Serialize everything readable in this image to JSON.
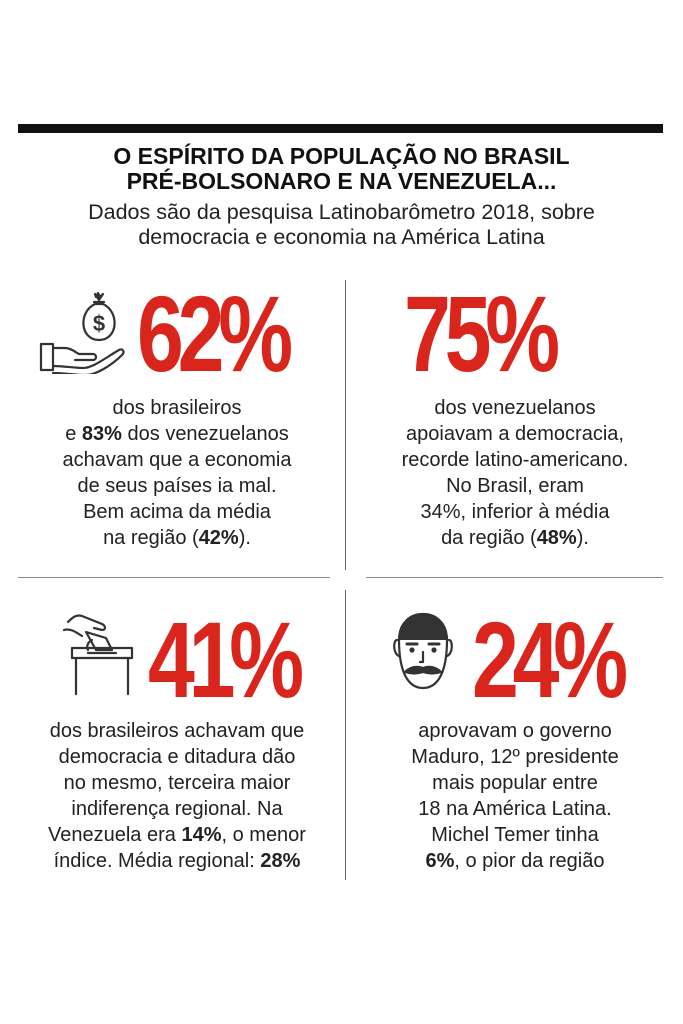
{
  "header": {
    "title_line1": "O ESPÍRITO DA POPULAÇÃO NO BRASIL",
    "title_line2": "PRÉ-BOLSONARO E NA VENEZUELA...",
    "subtitle_line1": "Dados são da pesquisa Latinobarômetro 2018, sobre",
    "subtitle_line2": "democracia e economia na América Latina"
  },
  "colors": {
    "accent": "#d9251c",
    "text": "#222222",
    "rule": "#111111"
  },
  "blocks": [
    {
      "icon": "money-bag-hand-icon",
      "stat": "62%",
      "lines": [
        {
          "pre": "dos brasileiros"
        },
        {
          "pre": "e ",
          "bold": "83%",
          "post": " dos venezuelanos"
        },
        {
          "pre": "achavam que a economia"
        },
        {
          "pre": "de seus países ia mal."
        },
        {
          "pre": "Bem acima da média"
        },
        {
          "pre": "na região (",
          "bold": "42%",
          "post": ")."
        }
      ]
    },
    {
      "icon": "",
      "stat": "75%",
      "lines": [
        {
          "pre": "dos venezuelanos"
        },
        {
          "pre": "apoiavam a democracia,"
        },
        {
          "pre": "recorde latino-americano."
        },
        {
          "pre": "No Brasil, eram"
        },
        {
          "pre": "34%, inferior à média"
        },
        {
          "pre": "da região (",
          "bold": "48%",
          "post": ")."
        }
      ]
    },
    {
      "icon": "ballot-box-icon",
      "stat": "41%",
      "lines": [
        {
          "pre": "dos brasileiros achavam que"
        },
        {
          "pre": "democracia e ditadura dão"
        },
        {
          "pre": "no mesmo, terceira maior"
        },
        {
          "pre": "indiferença regional. Na"
        },
        {
          "pre": "Venezuela era ",
          "bold": "14%",
          "post": ", o menor"
        },
        {
          "pre": "índice. Média regional: ",
          "bold": "28%"
        }
      ]
    },
    {
      "icon": "maduro-face-icon",
      "stat": "24%",
      "lines": [
        {
          "pre": "aprovavam o governo"
        },
        {
          "pre": "Maduro, 12º presidente"
        },
        {
          "pre": "mais popular entre"
        },
        {
          "pre": "18 na América Latina."
        },
        {
          "pre": "Michel Temer tinha"
        },
        {
          "bold": "6%",
          "post": ", o pior da região"
        }
      ]
    }
  ]
}
